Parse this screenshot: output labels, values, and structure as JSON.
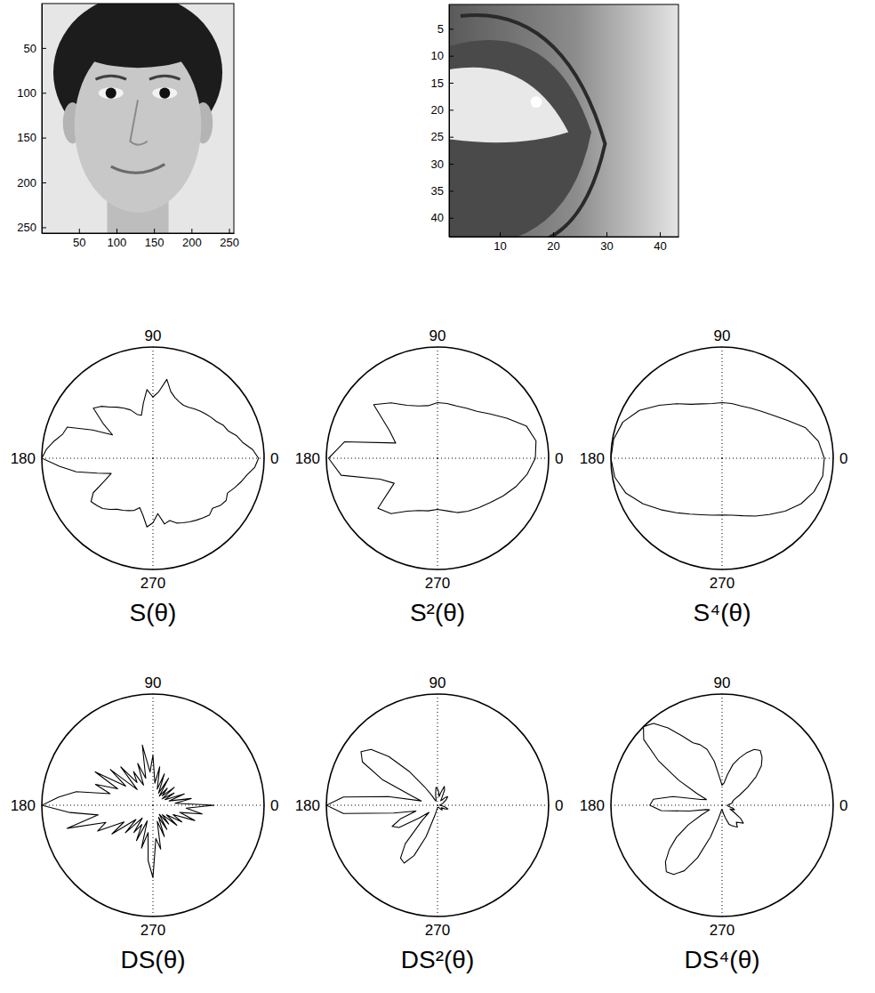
{
  "chart_data": [
    {
      "type": "image",
      "xlim": [
        0.5,
        256.5
      ],
      "ylim": [
        0.5,
        256.5
      ],
      "xticks": [
        50,
        100,
        150,
        200,
        250
      ],
      "yticks": [
        50,
        100,
        150,
        200,
        250
      ]
    },
    {
      "type": "image",
      "xlim": [
        0.5,
        43.5
      ],
      "ylim": [
        0.5,
        43.5
      ],
      "xticks": [
        10,
        20,
        30,
        40
      ],
      "yticks": [
        5,
        10,
        15,
        20,
        25,
        30,
        35,
        40
      ]
    },
    {
      "type": "polar",
      "title": "S(θ)",
      "xlim": [
        0,
        360
      ],
      "xticks": [
        0,
        90,
        180,
        270
      ],
      "ylim": [
        0,
        1
      ],
      "tick_labels": "x",
      "grid": true,
      "color": "#000000",
      "line_style": "solid",
      "x": [
        0,
        5,
        10,
        15,
        20,
        25,
        30,
        35,
        40,
        45,
        50,
        55,
        60,
        65,
        70,
        75,
        80,
        85,
        90,
        95,
        100,
        105,
        110,
        115,
        120,
        125,
        130,
        135,
        140,
        145,
        150,
        155,
        160,
        165,
        170,
        175,
        180,
        185,
        190,
        195,
        200,
        205,
        210,
        215,
        220,
        225,
        230,
        235,
        240,
        245,
        250,
        255,
        260,
        265,
        270,
        275,
        280,
        285,
        290,
        295,
        300,
        305,
        310,
        315,
        320,
        325,
        330,
        335,
        340,
        345,
        350,
        355
      ],
      "values": [
        0.95,
        0.9,
        0.82,
        0.78,
        0.72,
        0.7,
        0.66,
        0.64,
        0.62,
        0.6,
        0.58,
        0.56,
        0.55,
        0.56,
        0.58,
        0.62,
        0.72,
        0.6,
        0.55,
        0.62,
        0.5,
        0.4,
        0.42,
        0.48,
        0.52,
        0.56,
        0.6,
        0.66,
        0.7,
        0.55,
        0.42,
        0.6,
        0.82,
        0.84,
        0.9,
        0.96,
        1.0,
        0.84,
        0.7,
        0.52,
        0.4,
        0.48,
        0.62,
        0.68,
        0.66,
        0.64,
        0.6,
        0.56,
        0.54,
        0.52,
        0.5,
        0.46,
        0.52,
        0.62,
        0.58,
        0.5,
        0.6,
        0.58,
        0.62,
        0.64,
        0.66,
        0.68,
        0.7,
        0.72,
        0.7,
        0.74,
        0.76,
        0.74,
        0.78,
        0.82,
        0.86,
        0.92
      ]
    },
    {
      "type": "polar",
      "title": "S²(θ)",
      "xlim": [
        0,
        360
      ],
      "xticks": [
        0,
        90,
        180,
        270
      ],
      "ylim": [
        0,
        1
      ],
      "tick_labels": "x",
      "grid": true,
      "color": "#000000",
      "line_style": "solid",
      "x": [
        0,
        10,
        20,
        30,
        40,
        50,
        60,
        70,
        80,
        90,
        100,
        110,
        120,
        130,
        140,
        150,
        160,
        170,
        180,
        190,
        200,
        210,
        220,
        230,
        240,
        250,
        260,
        270,
        280,
        290,
        300,
        310,
        320,
        330,
        340,
        350
      ],
      "values": [
        0.88,
        0.9,
        0.85,
        0.72,
        0.62,
        0.55,
        0.52,
        0.5,
        0.5,
        0.5,
        0.48,
        0.5,
        0.55,
        0.65,
        0.75,
        0.5,
        0.4,
        0.85,
        0.98,
        0.88,
        0.55,
        0.45,
        0.7,
        0.65,
        0.55,
        0.5,
        0.48,
        0.46,
        0.48,
        0.52,
        0.55,
        0.58,
        0.62,
        0.68,
        0.75,
        0.82
      ]
    },
    {
      "type": "polar",
      "title": "S⁴(θ)",
      "xlim": [
        0,
        360
      ],
      "xticks": [
        0,
        90,
        180,
        270
      ],
      "ylim": [
        0,
        1
      ],
      "tick_labels": "x",
      "grid": true,
      "color": "#000000",
      "line_style": "solid",
      "x": [
        0,
        10,
        20,
        30,
        40,
        50,
        60,
        70,
        80,
        90,
        100,
        110,
        120,
        130,
        140,
        150,
        160,
        170,
        180,
        190,
        200,
        210,
        220,
        230,
        240,
        250,
        260,
        270,
        280,
        290,
        300,
        310,
        320,
        330,
        340,
        350
      ],
      "values": [
        0.92,
        0.88,
        0.8,
        0.68,
        0.6,
        0.55,
        0.52,
        0.5,
        0.5,
        0.5,
        0.5,
        0.52,
        0.56,
        0.64,
        0.74,
        0.86,
        0.95,
        0.99,
        1.0,
        0.98,
        0.92,
        0.82,
        0.72,
        0.64,
        0.58,
        0.54,
        0.52,
        0.51,
        0.52,
        0.55,
        0.6,
        0.66,
        0.74,
        0.82,
        0.88,
        0.92
      ]
    },
    {
      "type": "polar",
      "title": "DS(θ)",
      "xlim": [
        0,
        360
      ],
      "xticks": [
        0,
        90,
        180,
        270
      ],
      "ylim": [
        0,
        1
      ],
      "tick_labels": "x",
      "grid": true,
      "color": "#000000",
      "line_style": "solid",
      "x": [
        0,
        5,
        10,
        15,
        20,
        25,
        30,
        35,
        40,
        45,
        50,
        55,
        60,
        65,
        70,
        75,
        80,
        85,
        90,
        95,
        100,
        105,
        110,
        115,
        120,
        125,
        130,
        135,
        140,
        145,
        150,
        155,
        160,
        165,
        170,
        175,
        180,
        185,
        190,
        195,
        200,
        205,
        210,
        215,
        220,
        225,
        230,
        235,
        240,
        245,
        250,
        255,
        260,
        265,
        270,
        275,
        280,
        285,
        290,
        295,
        300,
        305,
        310,
        315,
        320,
        325,
        330,
        335,
        340,
        345,
        350,
        355
      ],
      "values": [
        0.55,
        0.2,
        0.35,
        0.15,
        0.3,
        0.12,
        0.22,
        0.1,
        0.25,
        0.12,
        0.2,
        0.1,
        0.28,
        0.12,
        0.3,
        0.15,
        0.35,
        0.2,
        0.45,
        0.3,
        0.55,
        0.25,
        0.4,
        0.2,
        0.35,
        0.25,
        0.45,
        0.2,
        0.5,
        0.3,
        0.6,
        0.35,
        0.55,
        0.4,
        0.7,
        0.85,
        1.0,
        0.75,
        0.5,
        0.8,
        0.45,
        0.55,
        0.3,
        0.45,
        0.2,
        0.35,
        0.15,
        0.3,
        0.2,
        0.35,
        0.15,
        0.4,
        0.25,
        0.5,
        0.65,
        0.3,
        0.4,
        0.15,
        0.3,
        0.12,
        0.25,
        0.1,
        0.22,
        0.12,
        0.28,
        0.15,
        0.3,
        0.2,
        0.4,
        0.25,
        0.45,
        0.3
      ]
    },
    {
      "type": "polar",
      "title": "DS²(θ)",
      "xlim": [
        0,
        360
      ],
      "xticks": [
        0,
        90,
        180,
        270
      ],
      "ylim": [
        0,
        1
      ],
      "tick_labels": "x",
      "grid": true,
      "color": "#000000",
      "line_style": "solid",
      "x": [
        0,
        5,
        10,
        15,
        20,
        25,
        30,
        35,
        40,
        45,
        50,
        55,
        60,
        65,
        70,
        75,
        80,
        85,
        90,
        95,
        100,
        105,
        110,
        115,
        120,
        125,
        130,
        135,
        140,
        145,
        150,
        155,
        160,
        165,
        170,
        175,
        180,
        185,
        190,
        195,
        200,
        205,
        210,
        215,
        220,
        225,
        230,
        235,
        240,
        245,
        250,
        255,
        260,
        265,
        270,
        275,
        280,
        285,
        290,
        295,
        300,
        305,
        310,
        315,
        320,
        325,
        330,
        335,
        340,
        345,
        350,
        355
      ],
      "values": [
        0.02,
        0.02,
        0.03,
        0.04,
        0.05,
        0.06,
        0.08,
        0.1,
        0.12,
        0.1,
        0.06,
        0.05,
        0.08,
        0.15,
        0.18,
        0.12,
        0.08,
        0.12,
        0.15,
        0.16,
        0.1,
        0.05,
        0.04,
        0.05,
        0.1,
        0.2,
        0.4,
        0.62,
        0.78,
        0.84,
        0.78,
        0.55,
        0.25,
        0.15,
        0.45,
        0.85,
        1.0,
        0.85,
        0.4,
        0.2,
        0.35,
        0.45,
        0.4,
        0.2,
        0.1,
        0.2,
        0.45,
        0.58,
        0.6,
        0.5,
        0.3,
        0.1,
        0.05,
        0.03,
        0.02,
        0.02,
        0.02,
        0.02,
        0.02,
        0.02,
        0.02,
        0.03,
        0.05,
        0.06,
        0.05,
        0.04,
        0.05,
        0.08,
        0.1,
        0.08,
        0.05,
        0.03
      ]
    },
    {
      "type": "polar",
      "title": "DS⁴(θ)",
      "xlim": [
        0,
        360
      ],
      "xticks": [
        0,
        90,
        180,
        270
      ],
      "ylim": [
        0,
        1
      ],
      "tick_labels": "x",
      "grid": true,
      "color": "#000000",
      "line_style": "solid",
      "x": [
        0,
        5,
        10,
        15,
        20,
        25,
        30,
        35,
        40,
        45,
        50,
        55,
        60,
        65,
        70,
        75,
        80,
        85,
        90,
        95,
        100,
        105,
        110,
        115,
        120,
        125,
        130,
        135,
        140,
        145,
        150,
        155,
        160,
        165,
        170,
        175,
        180,
        185,
        190,
        195,
        200,
        205,
        210,
        215,
        220,
        225,
        230,
        235,
        240,
        245,
        250,
        255,
        260,
        265,
        270,
        275,
        280,
        285,
        290,
        295,
        300,
        305,
        310,
        315,
        320,
        325,
        330,
        335,
        340,
        345,
        350,
        355
      ],
      "values": [
        0.05,
        0.06,
        0.08,
        0.1,
        0.1,
        0.12,
        0.18,
        0.28,
        0.4,
        0.5,
        0.56,
        0.6,
        0.58,
        0.52,
        0.45,
        0.38,
        0.28,
        0.2,
        0.18,
        0.25,
        0.4,
        0.52,
        0.58,
        0.62,
        0.72,
        0.85,
        0.96,
        1.0,
        0.92,
        0.7,
        0.45,
        0.25,
        0.15,
        0.2,
        0.45,
        0.62,
        0.65,
        0.55,
        0.3,
        0.15,
        0.12,
        0.2,
        0.35,
        0.5,
        0.62,
        0.72,
        0.78,
        0.76,
        0.68,
        0.52,
        0.3,
        0.12,
        0.06,
        0.04,
        0.04,
        0.05,
        0.08,
        0.12,
        0.18,
        0.2,
        0.22,
        0.24,
        0.2,
        0.22,
        0.25,
        0.2,
        0.12,
        0.08,
        0.12,
        0.1,
        0.06,
        0.05
      ]
    }
  ]
}
